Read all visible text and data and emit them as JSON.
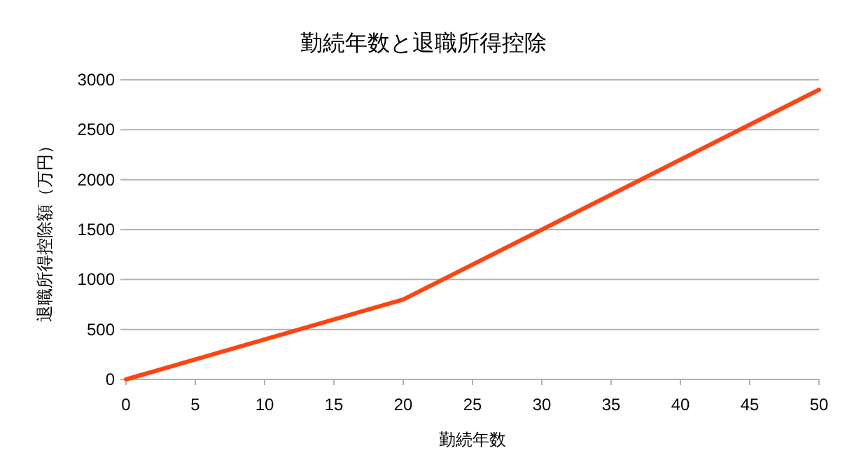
{
  "chart_data": {
    "type": "line",
    "title": "勤続年数と退職所得控除",
    "xlabel": "勤続年数",
    "ylabel": "退職所得控除額（万円）",
    "x": [
      0,
      20,
      50
    ],
    "series": [
      {
        "color": "#ff4412",
        "values": [
          0,
          800,
          2900
        ]
      }
    ],
    "xlim": [
      0,
      50
    ],
    "xticks": [
      0,
      5,
      10,
      15,
      20,
      25,
      30,
      35,
      40,
      45,
      50
    ],
    "ylim": [
      0,
      3000
    ],
    "yticks": [
      0,
      500,
      1000,
      1500,
      2000,
      2500,
      3000
    ],
    "grid": "y",
    "marker": "none",
    "line_style": "solid"
  }
}
